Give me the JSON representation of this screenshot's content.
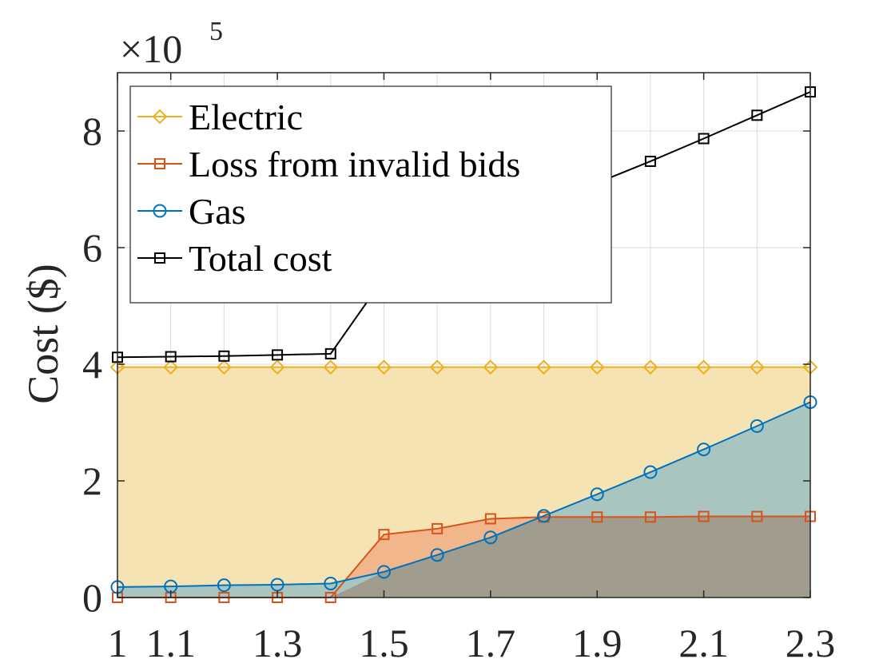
{
  "chart_data": {
    "type": "area",
    "x": [
      1,
      1.1,
      1.2,
      1.3,
      1.4,
      1.5,
      1.6,
      1.7,
      1.8,
      1.9,
      2.0,
      2.1,
      2.2,
      2.3
    ],
    "xticks": [
      "1",
      "1.1",
      "1.3",
      "1.5",
      "1.7",
      "1.9",
      "2.1",
      "2.3"
    ],
    "xtick_values": [
      1,
      1.1,
      1.3,
      1.5,
      1.7,
      1.9,
      2.1,
      2.3
    ],
    "xlim": [
      1,
      2.3
    ],
    "ylabel": "Cost ($)",
    "ylim": [
      0,
      9.0
    ],
    "yticks": [
      "0",
      "2",
      "4",
      "6",
      "8"
    ],
    "ytick_values": [
      0,
      2,
      4,
      6,
      8
    ],
    "yscale_label": "×10",
    "yscale_exponent": "5",
    "grid": true,
    "legend_position": "top-left",
    "series": [
      {
        "name": "Electric",
        "marker": "diamond",
        "color": "#EDB120",
        "fill": "#F5E3B3",
        "values": [
          3.95,
          3.95,
          3.95,
          3.95,
          3.95,
          3.95,
          3.95,
          3.95,
          3.95,
          3.95,
          3.95,
          3.95,
          3.95,
          3.95
        ]
      },
      {
        "name": "Loss from invalid bids",
        "marker": "square",
        "color": "#D95319",
        "fill": "#F2B68C",
        "values": [
          0.0,
          0.0,
          0.0,
          0.0,
          0.0,
          1.08,
          1.18,
          1.35,
          1.38,
          1.38,
          1.38,
          1.39,
          1.39,
          1.39
        ]
      },
      {
        "name": "Gas",
        "marker": "circle",
        "color": "#0072BD",
        "fill": "#A9C5C0",
        "values": [
          0.18,
          0.19,
          0.21,
          0.22,
          0.24,
          0.44,
          0.73,
          1.03,
          1.4,
          1.77,
          2.15,
          2.54,
          2.94,
          3.35
        ]
      },
      {
        "name": "Total cost",
        "marker": "square",
        "color": "#000000",
        "values": [
          4.12,
          4.13,
          4.14,
          4.16,
          4.18,
          5.48,
          5.86,
          6.35,
          6.73,
          7.11,
          7.48,
          7.87,
          8.27,
          8.67
        ]
      }
    ]
  }
}
